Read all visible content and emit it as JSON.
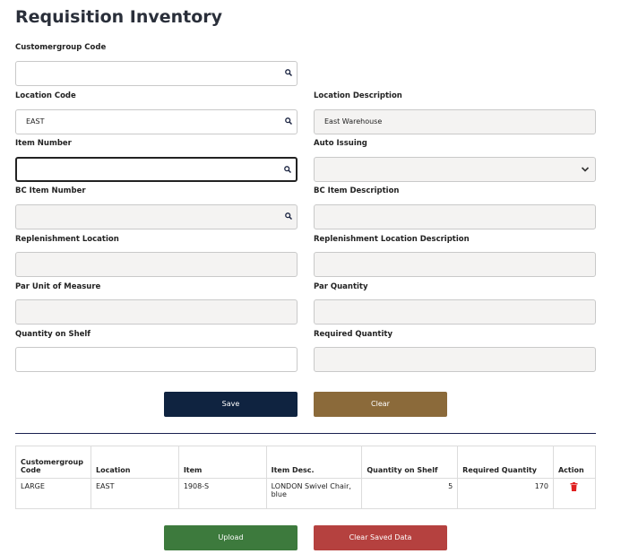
{
  "header": {
    "title": "Requisition Inventory"
  },
  "form": {
    "fields": [
      {
        "label": "Customergroup Code"
      },
      {
        "label": "Location Code",
        "value": "EAST"
      },
      {
        "label": "Location Description",
        "value": "East Warehouse"
      },
      {
        "label": "Item Number"
      },
      {
        "label": "Auto Issuing"
      },
      {
        "label": "BC Item Number"
      },
      {
        "label": "BC Item Description"
      },
      {
        "label": "Replenishment Location"
      },
      {
        "label": "Replenishment Location Description"
      },
      {
        "label": "Par Unit of Measure"
      },
      {
        "label": "Par Quantity"
      },
      {
        "label": "Quantity on Shelf"
      },
      {
        "label": "Required Quantity"
      }
    ],
    "buttons": [
      "Save",
      "Clear"
    ]
  },
  "table": {
    "columns": [
      "Customergroup Code",
      "Location",
      "Item",
      "Item Desc.",
      "Quantity on Shelf",
      "Required Quantity",
      "Action"
    ],
    "rows": [
      [
        "LARGE",
        "EAST",
        "1908-S",
        "LONDON Swivel Chair, blue",
        5,
        170
      ]
    ]
  },
  "footer": {
    "buttons": [
      "Upload",
      "Clear Saved Data"
    ]
  }
}
